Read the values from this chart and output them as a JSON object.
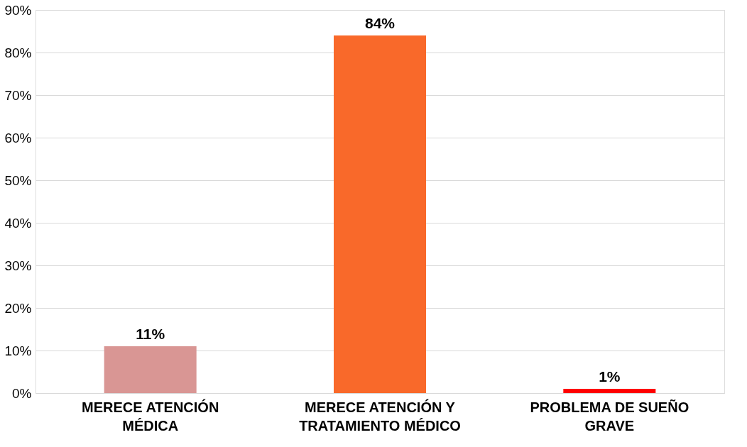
{
  "chart_data": {
    "type": "bar",
    "categories": [
      "MERECE ATENCIÓN MÉDICA",
      "MERECE ATENCIÓN Y TRATAMIENTO MÉDICO",
      "PROBLEMA DE SUEÑO GRAVE"
    ],
    "values": [
      11,
      84,
      1
    ],
    "colors": [
      "#d99694",
      "#f9692a",
      "#ff0000"
    ],
    "value_labels": [
      "11%",
      "84%",
      "1%"
    ],
    "ylim": [
      0,
      90
    ],
    "yticks": [
      {
        "value": 0,
        "label": "0%"
      },
      {
        "value": 10,
        "label": "10%"
      },
      {
        "value": 20,
        "label": "20%"
      },
      {
        "value": 30,
        "label": "30%"
      },
      {
        "value": 40,
        "label": "40%"
      },
      {
        "value": 50,
        "label": "50%"
      },
      {
        "value": 60,
        "label": "60%"
      },
      {
        "value": 70,
        "label": "70%"
      },
      {
        "value": 80,
        "label": "80%"
      },
      {
        "value": 90,
        "label": "90%"
      }
    ],
    "grid": "y"
  }
}
